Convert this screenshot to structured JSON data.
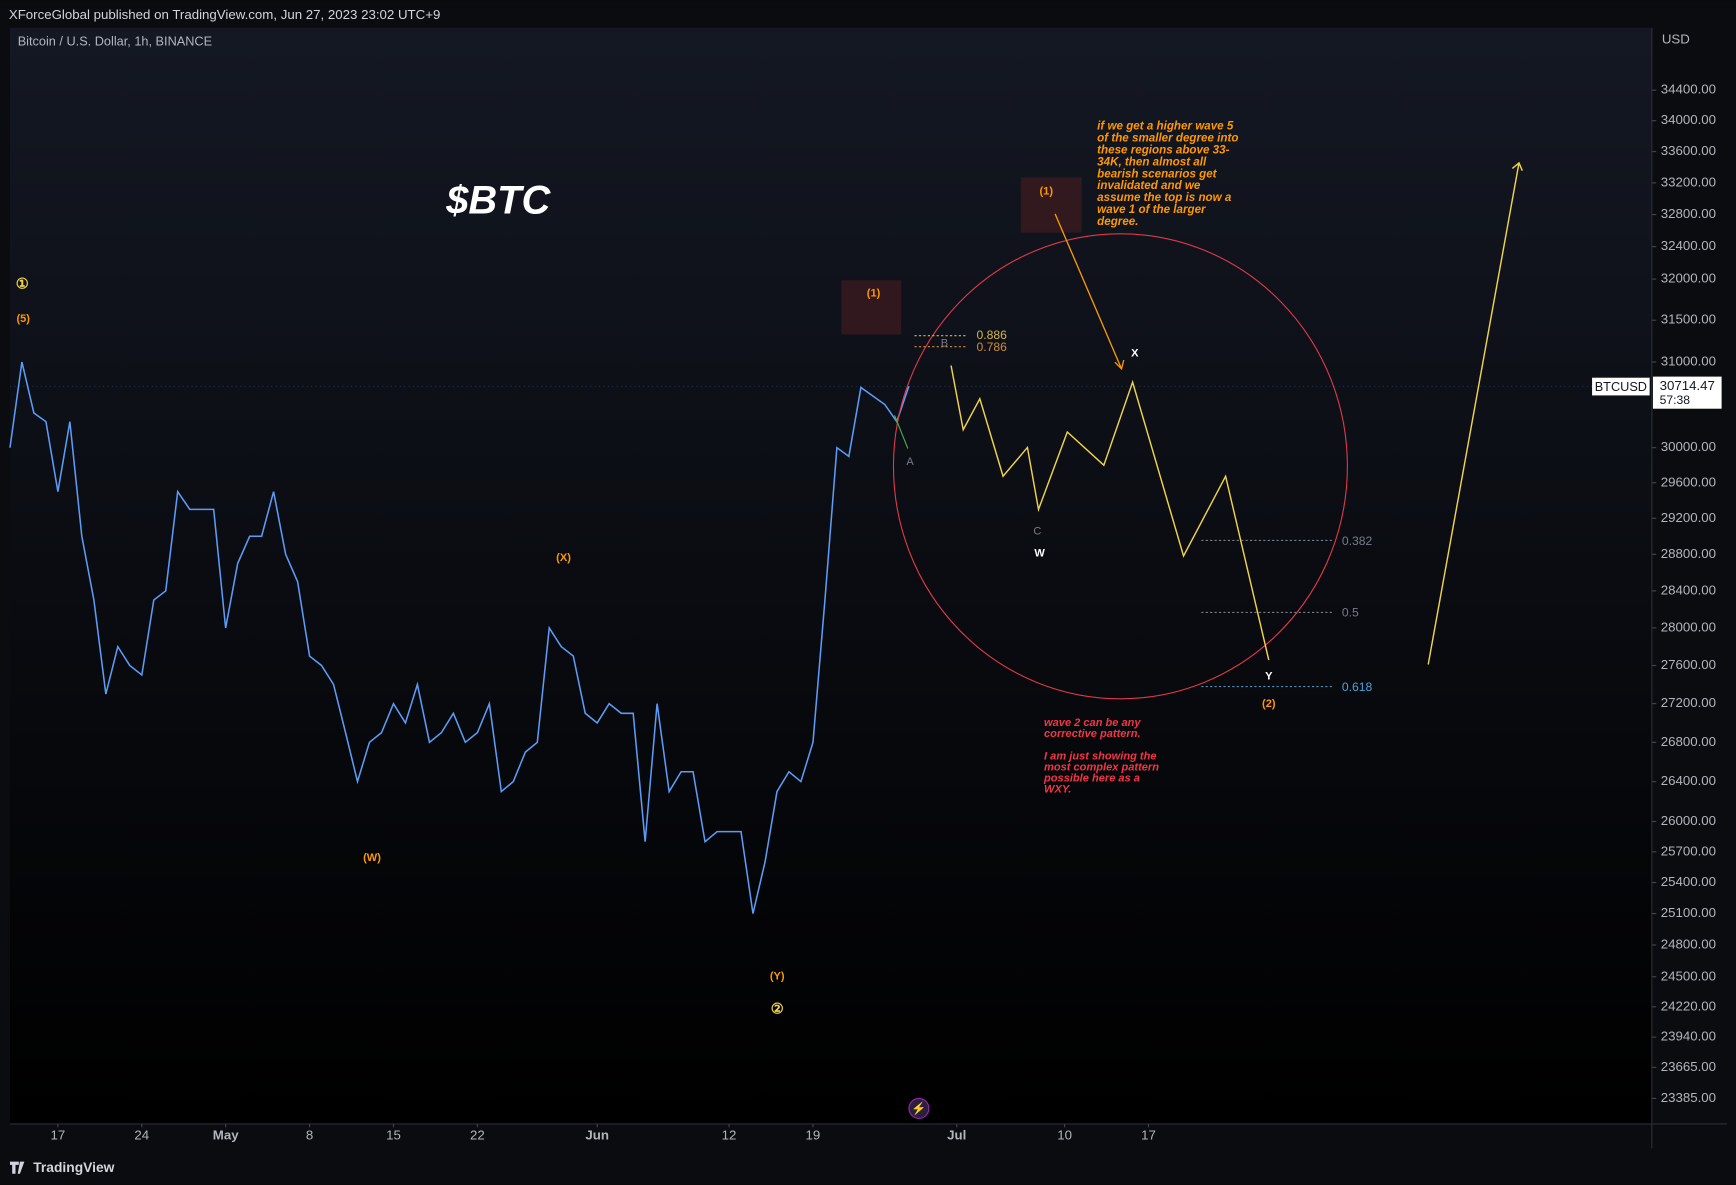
{
  "header": "XForceGlobal published on TradingView.com, Jun 27, 2023 23:02 UTC+9",
  "footer": "TradingView",
  "chart_data": {
    "type": "line",
    "title": "$BTC",
    "log_scale": true,
    "grid": false,
    "currency": "USD",
    "series": [
      {
        "name": "Bitcoin / U.S. Dollar, 1h, BINANCE",
        "color": "#5b9cf6",
        "values": [
          30000,
          31000,
          30400,
          30300,
          29500,
          30300,
          29000,
          28300,
          27300,
          27800,
          27600,
          27500,
          28300,
          28400,
          29500,
          29300,
          29300,
          29300,
          28000,
          28700,
          29000,
          29000,
          29500,
          28800,
          28500,
          27700,
          27600,
          27400,
          26900,
          26400,
          26800,
          26900,
          27200,
          27000,
          27400,
          26800,
          26900,
          27100,
          26800,
          26900,
          27200,
          26300,
          26400,
          26700,
          26800,
          28000,
          27800,
          27700,
          27100,
          27000,
          27200,
          27100,
          27100,
          25800,
          27200,
          26300,
          26500,
          26500,
          25800,
          25900,
          25900,
          25900,
          25100,
          25600,
          26300,
          26500,
          26400,
          26800,
          28300,
          30000,
          29900,
          30700,
          30600,
          30500,
          30300,
          30714.47
        ]
      }
    ],
    "x": [
      "2023-04-13",
      "2023-04-14",
      "2023-04-15",
      "2023-04-16",
      "2023-04-17",
      "2023-04-18",
      "2023-04-19",
      "2023-04-20",
      "2023-04-21",
      "2023-04-22",
      "2023-04-23",
      "2023-04-24",
      "2023-04-25",
      "2023-04-26",
      "2023-04-27",
      "2023-04-28",
      "2023-04-29",
      "2023-04-30",
      "2023-05-01",
      "2023-05-02",
      "2023-05-03",
      "2023-05-04",
      "2023-05-05",
      "2023-05-06",
      "2023-05-07",
      "2023-05-08",
      "2023-05-09",
      "2023-05-10",
      "2023-05-11",
      "2023-05-12",
      "2023-05-13",
      "2023-05-14",
      "2023-05-15",
      "2023-05-16",
      "2023-05-17",
      "2023-05-18",
      "2023-05-19",
      "2023-05-20",
      "2023-05-21",
      "2023-05-22",
      "2023-05-23",
      "2023-05-24",
      "2023-05-25",
      "2023-05-26",
      "2023-05-27",
      "2023-05-28",
      "2023-05-29",
      "2023-05-30",
      "2023-05-31",
      "2023-06-01",
      "2023-06-02",
      "2023-06-03",
      "2023-06-04",
      "2023-06-05",
      "2023-06-06",
      "2023-06-07",
      "2023-06-08",
      "2023-06-09",
      "2023-06-10",
      "2023-06-11",
      "2023-06-12",
      "2023-06-13",
      "2023-06-14",
      "2023-06-15",
      "2023-06-16",
      "2023-06-17",
      "2023-06-18",
      "2023-06-19",
      "2023-06-20",
      "2023-06-21",
      "2023-06-22",
      "2023-06-23",
      "2023-06-24",
      "2023-06-25",
      "2023-06-26",
      "2023-06-27"
    ],
    "xlim": [
      "2023-04-13",
      "2023-08-28"
    ],
    "xticks": [
      {
        "value": "2023-04-17",
        "label": "17"
      },
      {
        "value": "2023-04-24",
        "label": "24"
      },
      {
        "value": "2023-05-01",
        "label": "May"
      },
      {
        "value": "2023-05-08",
        "label": "8"
      },
      {
        "value": "2023-05-15",
        "label": "15"
      },
      {
        "value": "2023-05-22",
        "label": "22"
      },
      {
        "value": "2023-06-01",
        "label": "Jun"
      },
      {
        "value": "2023-06-12",
        "label": "12"
      },
      {
        "value": "2023-06-19",
        "label": "19"
      },
      {
        "value": "2023-07-01",
        "label": "Jul"
      },
      {
        "value": "2023-07-10",
        "label": "10"
      },
      {
        "value": "2023-07-17",
        "label": "17"
      }
    ],
    "ylim": [
      23158,
      35230
    ],
    "yticks": [
      {
        "value": 34400,
        "label": "34400.00"
      },
      {
        "value": 34000,
        "label": "34000.00"
      },
      {
        "value": 33600,
        "label": "33600.00"
      },
      {
        "value": 33200,
        "label": "33200.00"
      },
      {
        "value": 32800,
        "label": "32800.00"
      },
      {
        "value": 32400,
        "label": "32400.00"
      },
      {
        "value": 32000,
        "label": "32000.00"
      },
      {
        "value": 31500,
        "label": "31500.00"
      },
      {
        "value": 31000,
        "label": "31000.00"
      },
      {
        "value": 30000,
        "label": "30000.00"
      },
      {
        "value": 29600,
        "label": "29600.00"
      },
      {
        "value": 29200,
        "label": "29200.00"
      },
      {
        "value": 28800,
        "label": "28800.00"
      },
      {
        "value": 28400,
        "label": "28400.00"
      },
      {
        "value": 28000,
        "label": "28000.00"
      },
      {
        "value": 27600,
        "label": "27600.00"
      },
      {
        "value": 27200,
        "label": "27200.00"
      },
      {
        "value": 26800,
        "label": "26800.00"
      },
      {
        "value": 26400,
        "label": "26400.00"
      },
      {
        "value": 26000,
        "label": "26000.00"
      },
      {
        "value": 25700,
        "label": "25700.00"
      },
      {
        "value": 25400,
        "label": "25400.00"
      },
      {
        "value": 25100,
        "label": "25100.00"
      },
      {
        "value": 24800,
        "label": "24800.00"
      },
      {
        "value": 24500,
        "label": "24500.00"
      },
      {
        "value": 24220,
        "label": "24220.00"
      },
      {
        "value": 23940,
        "label": "23940.00"
      },
      {
        "value": 23665,
        "label": "23665.00"
      },
      {
        "value": 23385,
        "label": "23385.00"
      }
    ],
    "price_tag": {
      "symbol": "BTCUSD",
      "value": 30714.47,
      "countdown": "57:38"
    }
  },
  "annotations": {
    "waves": [
      "①",
      "(5)",
      "(W)",
      "(X)",
      "(Y)",
      "②",
      "(1)",
      "(1)",
      "A",
      "B",
      "C",
      "W",
      "X",
      "Y",
      "(2)"
    ],
    "fib": [
      "0.886",
      "0.786",
      "0.382",
      "0.5",
      "0.618"
    ],
    "note_bull": [
      "if we get a higher wave 5",
      "of the smaller degree into",
      "these regions above 33-",
      "34K, then almost all",
      "bearish scenarios get",
      "invalidated and we",
      "assume the top is now a",
      "wave 1 of the larger",
      "degree."
    ],
    "note_bear": [
      "wave 2 can be any",
      "corrective pattern.",
      "I am just showing the",
      "most complex pattern",
      "possible here as a",
      "WXY."
    ]
  }
}
